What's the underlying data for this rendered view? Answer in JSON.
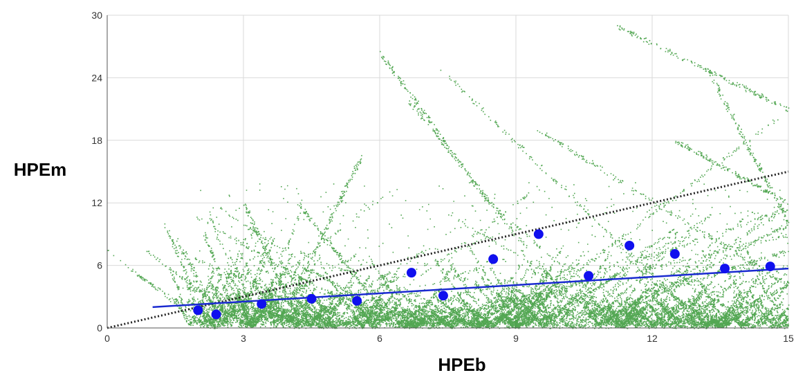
{
  "chart_data": {
    "type": "scatter",
    "xlabel": "HPEb",
    "ylabel": "HPEm",
    "xlim": [
      0,
      15
    ],
    "ylim": [
      0,
      30
    ],
    "x_ticks": [
      "0",
      "3",
      "6",
      "9",
      "12",
      "15"
    ],
    "y_ticks": [
      "0",
      "6",
      "12",
      "18",
      "24",
      "30"
    ],
    "grid": true,
    "colors": {
      "scatter": "#1a8a1a",
      "binned_points": "#1010ee",
      "fit_line": "#1a2ad0",
      "reference_line": "#222222"
    },
    "binned_points": [
      {
        "x": 2.0,
        "y": 1.7
      },
      {
        "x": 2.4,
        "y": 1.3
      },
      {
        "x": 3.4,
        "y": 2.3
      },
      {
        "x": 4.5,
        "y": 2.8
      },
      {
        "x": 5.5,
        "y": 2.6
      },
      {
        "x": 6.7,
        "y": 5.3
      },
      {
        "x": 7.4,
        "y": 3.1
      },
      {
        "x": 8.5,
        "y": 6.6
      },
      {
        "x": 9.5,
        "y": 9.0
      },
      {
        "x": 10.6,
        "y": 5.0
      },
      {
        "x": 11.5,
        "y": 7.9
      },
      {
        "x": 12.5,
        "y": 7.1
      },
      {
        "x": 13.6,
        "y": 5.7
      },
      {
        "x": 14.6,
        "y": 5.9
      }
    ],
    "fit_line": {
      "x": [
        1.0,
        15.0
      ],
      "y": [
        2.0,
        5.7
      ]
    },
    "reference_line": {
      "x": [
        0,
        15
      ],
      "y": [
        0,
        15
      ]
    }
  }
}
